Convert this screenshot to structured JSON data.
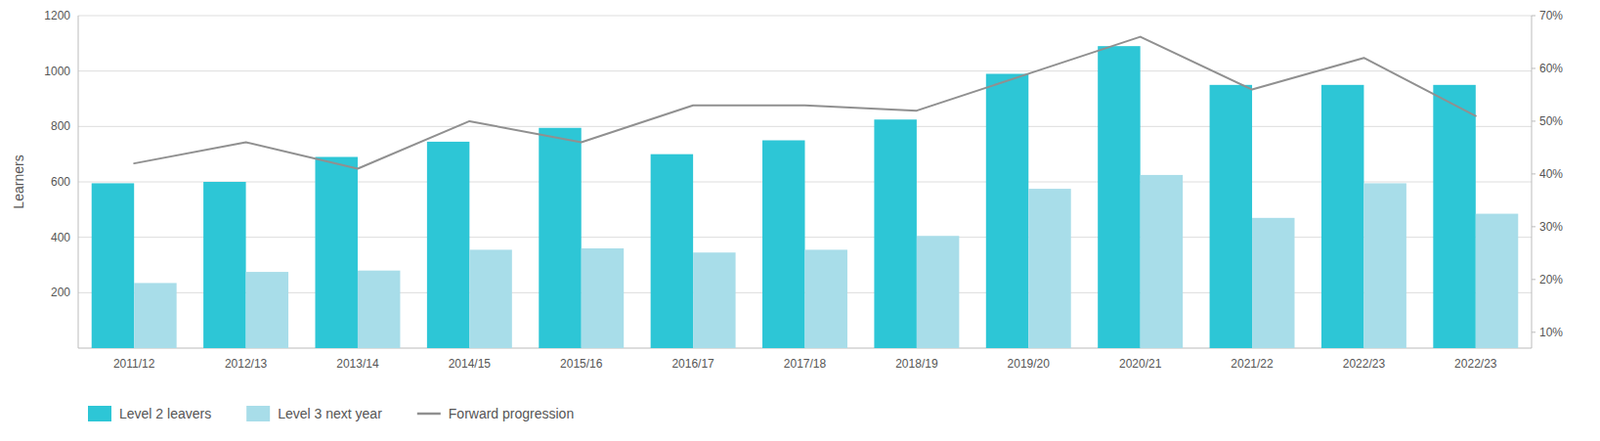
{
  "chart_data": {
    "type": "bar",
    "categories": [
      "2011/12",
      "2012/13",
      "2013/14",
      "2014/15",
      "2015/16",
      "2016/17",
      "2017/18",
      "2018/19",
      "2019/20",
      "2020/21",
      "2021/22",
      "2022/23",
      "2022/23"
    ],
    "series": [
      {
        "name": "Level 2 leavers",
        "color": "#2DC6D6",
        "values": [
          595,
          600,
          690,
          745,
          795,
          700,
          750,
          825,
          990,
          1090,
          950,
          950,
          950
        ]
      },
      {
        "name": "Level 3 next year",
        "color": "#A8DDE9",
        "values": [
          235,
          275,
          280,
          355,
          360,
          345,
          355,
          405,
          575,
          625,
          470,
          595,
          485
        ]
      },
      {
        "name": "Forward progression",
        "type": "line",
        "axis": "y2",
        "color": "#909090",
        "values": [
          0.42,
          0.46,
          0.41,
          0.5,
          0.46,
          0.53,
          0.53,
          0.52,
          0.59,
          0.66,
          0.56,
          0.62,
          0.51
        ]
      }
    ],
    "ylabel": "Learners",
    "ylim": [
      0,
      1200
    ],
    "yticks": [
      200,
      400,
      600,
      800,
      1000,
      1200
    ],
    "y2lim": [
      0.07,
      0.7
    ],
    "y2ticks": [
      {
        "value": 0.1,
        "label": "10%"
      },
      {
        "value": 0.2,
        "label": "20%"
      },
      {
        "value": 0.3,
        "label": "30%"
      },
      {
        "value": 0.4,
        "label": "40%"
      },
      {
        "value": 0.5,
        "label": "50%"
      },
      {
        "value": 0.6,
        "label": "60%"
      },
      {
        "value": 0.7,
        "label": "70%"
      }
    ],
    "grid": true,
    "legend": "bottom"
  }
}
